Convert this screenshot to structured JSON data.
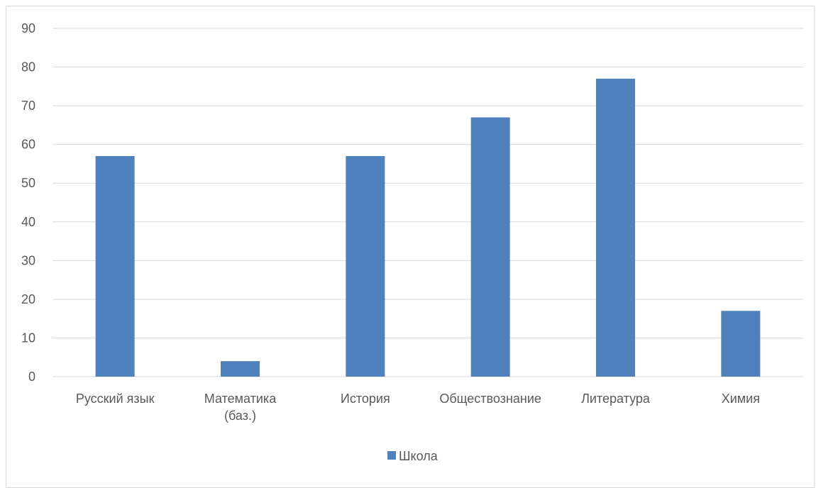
{
  "chart_data": {
    "type": "bar",
    "categories": [
      [
        "Русский язык"
      ],
      [
        "Математика",
        "(баз.)"
      ],
      [
        "История"
      ],
      [
        "Обществознание"
      ],
      [
        "Литература"
      ],
      [
        "Химия"
      ]
    ],
    "series": [
      {
        "name": "Школа",
        "values": [
          57,
          4,
          57,
          67,
          77,
          17
        ],
        "color": "#4f81bd"
      }
    ],
    "ylim": [
      0,
      90
    ],
    "yticks": [
      0,
      10,
      20,
      30,
      40,
      50,
      60,
      70,
      80,
      90
    ],
    "grid": true,
    "gridColor": "#d9d9d9",
    "legend_position": "bottom"
  }
}
